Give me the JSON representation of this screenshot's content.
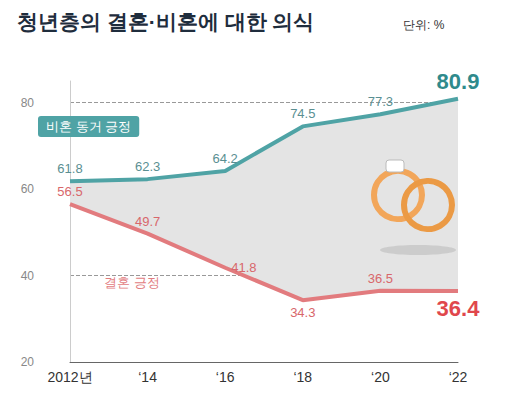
{
  "chart_data": {
    "type": "line",
    "title": "청년층의 결혼·비혼에 대한 의식",
    "subtitle": "단위: %",
    "categories": [
      "2012년",
      "‘14",
      "‘16",
      "‘18",
      "‘20",
      "‘22"
    ],
    "series": [
      {
        "name": "비혼 동거 긍정",
        "color": "#4fa3a5",
        "values": [
          61.8,
          62.3,
          64.2,
          74.5,
          77.3,
          80.9
        ]
      },
      {
        "name": "결혼 긍정",
        "color": "#e27b7e",
        "values": [
          56.5,
          49.7,
          41.8,
          34.3,
          36.5,
          36.4
        ]
      }
    ],
    "ylim": [
      20,
      85
    ],
    "yticks": [
      20,
      40,
      60,
      80
    ],
    "grid": true,
    "data_labels": true
  }
}
